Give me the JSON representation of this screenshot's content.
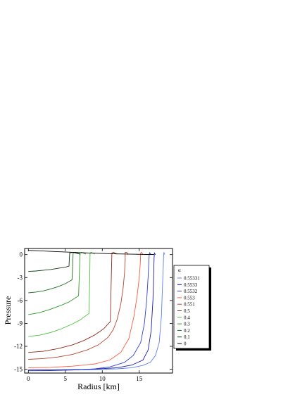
{
  "chart_data": {
    "type": "line",
    "title": "",
    "xlabel": "Radius [km]",
    "ylabel": "Pressure",
    "xlim": [
      -0.5,
      19.5
    ],
    "ylim": [
      -15.5,
      0.8
    ],
    "x_ticks": [
      0,
      5,
      10,
      15
    ],
    "y_ticks": [
      0,
      -3,
      -6,
      -9,
      -12,
      -15
    ],
    "grid": false,
    "legend_title": "α",
    "legend_position": "right",
    "series": [
      {
        "name": "0.55331",
        "color": "#5a7ff0",
        "x": [
          0,
          3,
          6,
          9,
          12,
          14,
          15.5,
          16.5,
          17.2,
          17.7,
          18.0,
          18.15,
          18.25,
          18.3,
          18.35,
          18.45
        ],
        "y": [
          -15.1,
          -15.1,
          -15.08,
          -15.05,
          -14.95,
          -14.8,
          -14.5,
          -14.1,
          -13.2,
          -11.5,
          -8,
          -4,
          -1.5,
          0,
          0.25,
          0
        ]
      },
      {
        "name": "0.5533",
        "color": "#1a1aa8",
        "x": [
          0,
          3,
          6,
          9,
          12,
          14,
          15.5,
          16.2,
          16.6,
          16.85,
          16.95,
          17.0,
          17.05,
          17.2
        ],
        "y": [
          -15.1,
          -15.08,
          -15.05,
          -14.98,
          -14.8,
          -14.45,
          -13.8,
          -12.5,
          -10,
          -6,
          -3,
          -0.5,
          0.2,
          0
        ]
      },
      {
        "name": "0.5532",
        "color": "#2f3fd0",
        "x": [
          0,
          3,
          6,
          9,
          11,
          13,
          14.2,
          15.2,
          15.7,
          16.0,
          16.2,
          16.3,
          16.35,
          16.4,
          16.6
        ],
        "y": [
          -15.2,
          -15.18,
          -15.1,
          -14.95,
          -14.7,
          -14.1,
          -13.2,
          -11.5,
          -9,
          -6,
          -3,
          -1,
          0,
          0.25,
          0
        ]
      },
      {
        "name": "0.553",
        "color": "#ff5a3a",
        "x": [
          0,
          3,
          6,
          9,
          11,
          12.5,
          13.6,
          14.3,
          14.7,
          15.0,
          15.15,
          15.2,
          15.3,
          15.5
        ],
        "y": [
          -14.8,
          -14.75,
          -14.6,
          -14.3,
          -13.8,
          -12.8,
          -11,
          -8,
          -5.5,
          -3,
          -1,
          0.2,
          0.3,
          0
        ]
      },
      {
        "name": "0.551",
        "color": "#b8432a",
        "x": [
          0,
          2,
          4,
          6,
          8,
          9.5,
          10.8,
          11.5,
          12,
          12.5,
          12.8,
          13.0,
          13.1,
          13.1,
          13.3,
          13.5
        ],
        "y": [
          -13.7,
          -13.6,
          -13.4,
          -13.05,
          -12.45,
          -11.8,
          -10.8,
          -9.8,
          -8.5,
          -6.5,
          -4.5,
          -2.5,
          -0.8,
          0.3,
          0.3,
          0
        ]
      },
      {
        "name": "0.5",
        "color": "#8b2a1c",
        "x": [
          0,
          2,
          4,
          6,
          7.5,
          9,
          10.2,
          11.1,
          11.2,
          11.3,
          11.5,
          12
        ],
        "y": [
          -12.8,
          -12.65,
          -12.3,
          -11.8,
          -11.25,
          -10.5,
          -9.7,
          -8.75,
          -4,
          0.2,
          0.3,
          0.05
        ]
      },
      {
        "name": "0.4",
        "color": "#4ac23a",
        "x": [
          0,
          1.5,
          3,
          4.5,
          6,
          7,
          8.2,
          8.3,
          8.35,
          8.5,
          9
        ],
        "y": [
          -10.7,
          -10.55,
          -10.2,
          -9.7,
          -9.05,
          -8.55,
          -7.7,
          -3.5,
          0.2,
          0.3,
          0.05
        ]
      },
      {
        "name": "0.3",
        "color": "#2e9a2a",
        "x": [
          0,
          1.5,
          3,
          4.5,
          5.5,
          6.8,
          6.9,
          7.0,
          7.2,
          7.8
        ],
        "y": [
          -7.85,
          -7.6,
          -7.15,
          -6.6,
          -6.2,
          -5.4,
          -2.5,
          0.2,
          0.3,
          0.05
        ]
      },
      {
        "name": "0.2",
        "color": "#1e6a1e",
        "x": [
          0,
          1,
          2,
          3,
          4,
          5,
          5.9,
          6.0,
          6.05,
          6.3,
          7
        ],
        "y": [
          -5,
          -4.9,
          -4.75,
          -4.5,
          -4.2,
          -3.8,
          -3.3,
          -1.5,
          0.2,
          0.3,
          0.05
        ]
      },
      {
        "name": "0.1",
        "color": "#0f3d12",
        "x": [
          0,
          1,
          2,
          3,
          4,
          5,
          5.5,
          5.55,
          5.6,
          6,
          7
        ],
        "y": [
          -2.2,
          -2.15,
          -2.05,
          -1.95,
          -1.8,
          -1.65,
          -1.5,
          -0.5,
          0.2,
          0.3,
          0.05
        ]
      },
      {
        "name": "0",
        "color": "#000000",
        "x": [
          0,
          2,
          4,
          6,
          8,
          10,
          12,
          14,
          16,
          17
        ],
        "y": [
          0.55,
          0.47,
          0.38,
          0.3,
          0.22,
          0.15,
          0.09,
          0.05,
          0.02,
          0.02
        ]
      }
    ]
  }
}
